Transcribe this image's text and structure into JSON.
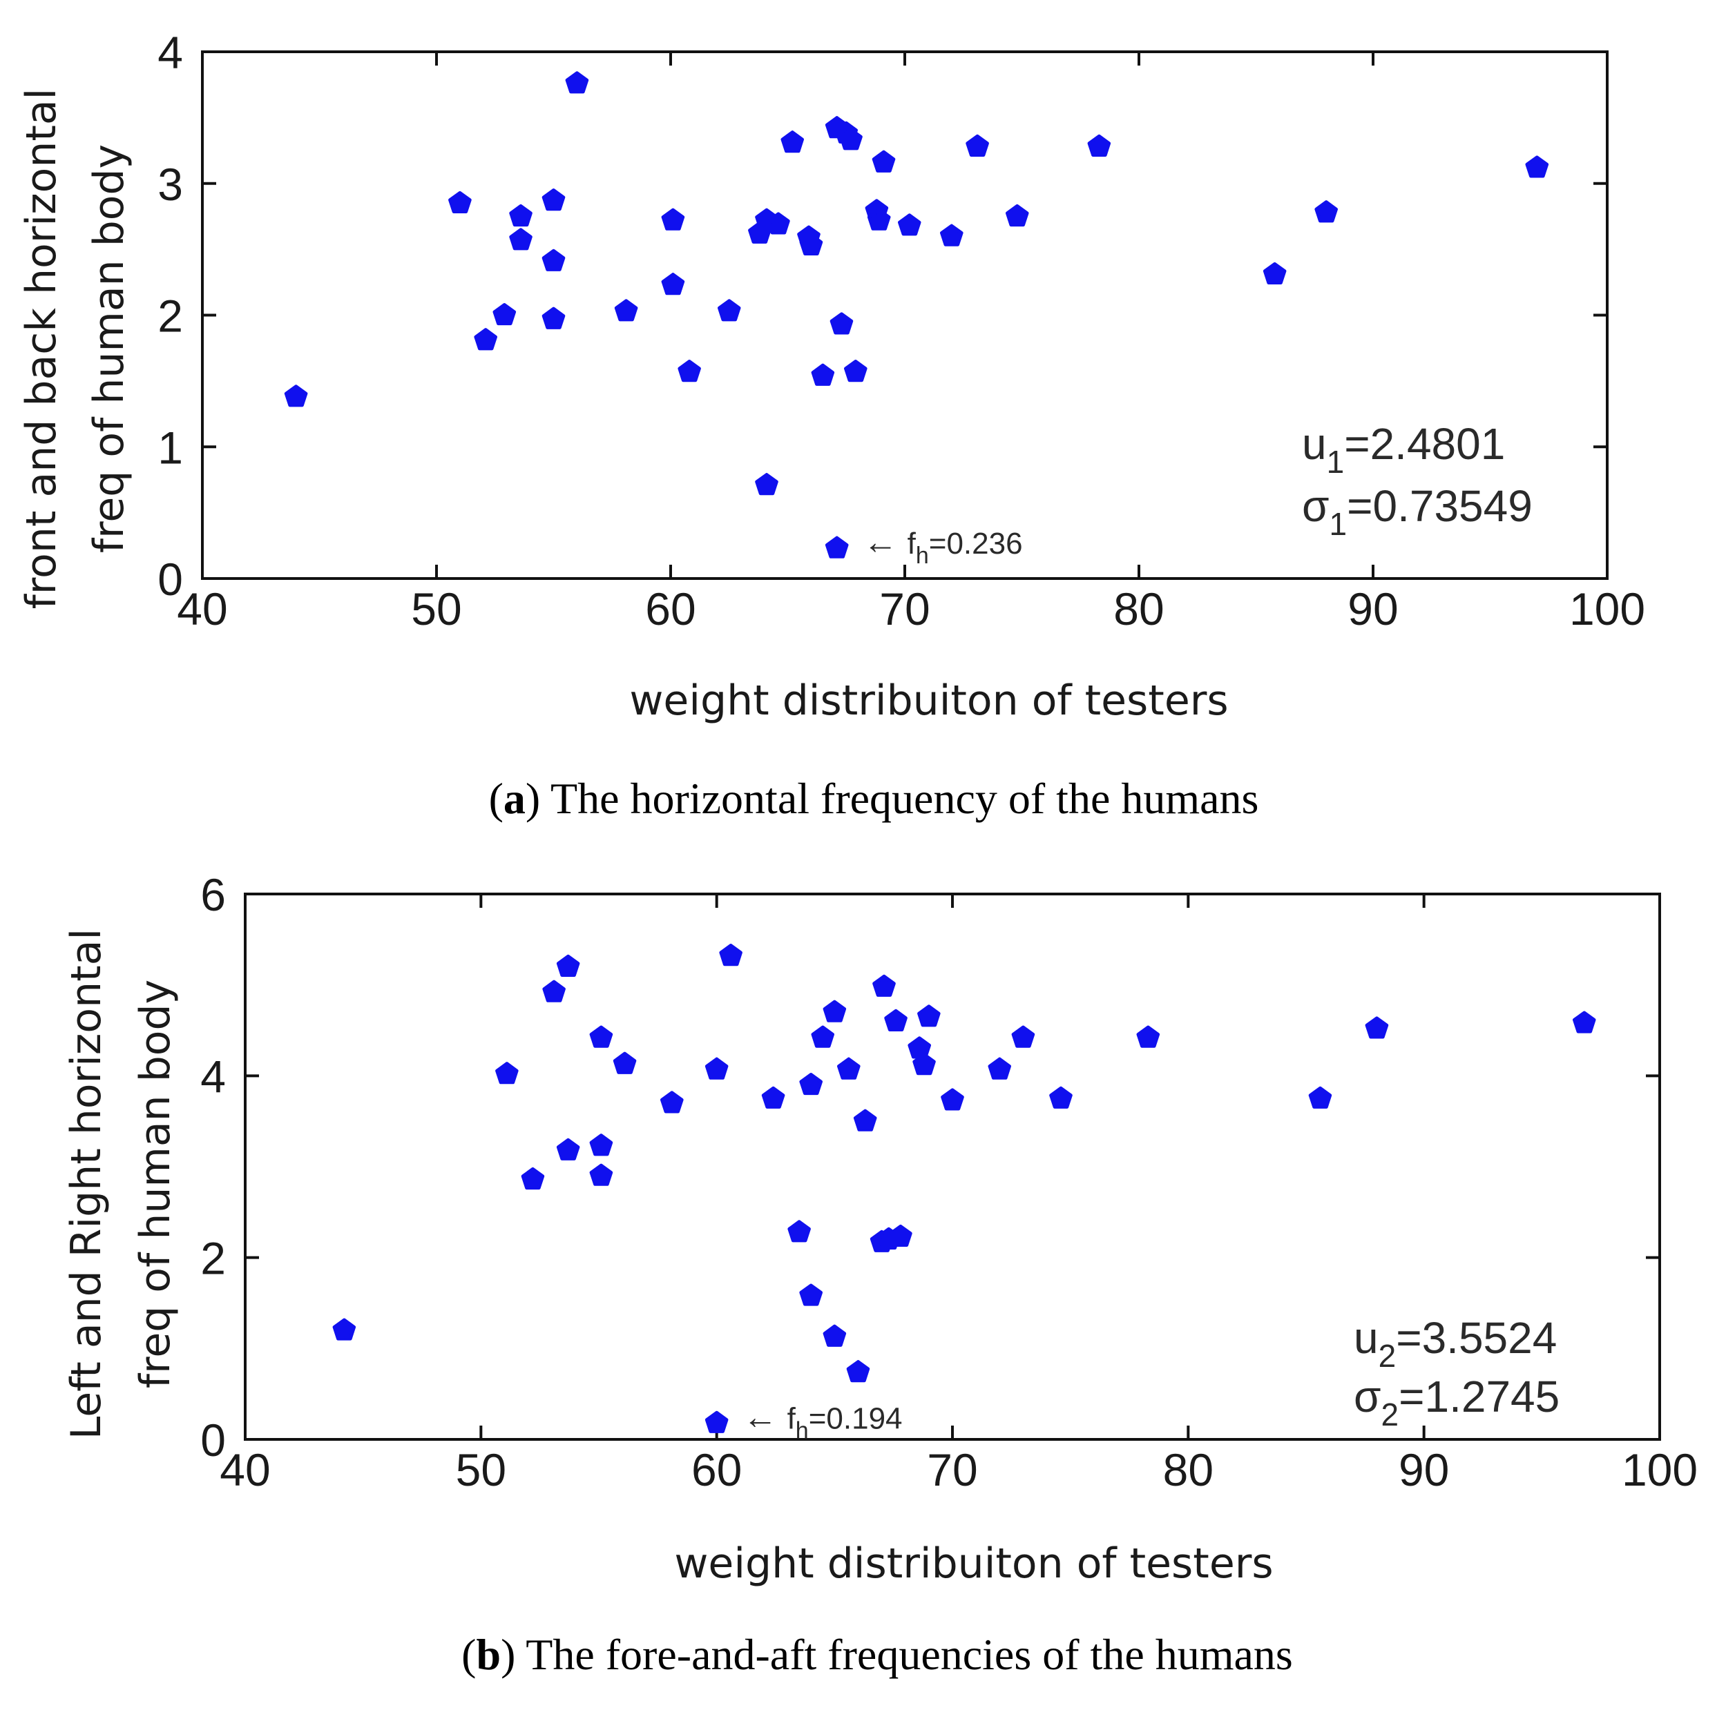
{
  "chart_data": [
    {
      "id": "a",
      "type": "scatter",
      "xlabel": "weight distribuiton of testers",
      "ylabel_line1": "front and back horizontal",
      "ylabel_line2": "freq of human body",
      "xlim": [
        40,
        100
      ],
      "ylim": [
        0,
        4
      ],
      "xticks": [
        40,
        50,
        60,
        70,
        80,
        90,
        100
      ],
      "yticks": [
        0,
        1,
        2,
        3,
        4
      ],
      "marker_color": "#1010ee",
      "points": [
        {
          "x": 44.0,
          "y": 1.38
        },
        {
          "x": 51.0,
          "y": 2.85
        },
        {
          "x": 52.1,
          "y": 1.81
        },
        {
          "x": 52.9,
          "y": 2.0
        },
        {
          "x": 53.6,
          "y": 2.75
        },
        {
          "x": 53.6,
          "y": 2.57
        },
        {
          "x": 55.0,
          "y": 2.87
        },
        {
          "x": 55.0,
          "y": 2.41
        },
        {
          "x": 55.0,
          "y": 1.97
        },
        {
          "x": 56.0,
          "y": 3.76
        },
        {
          "x": 58.1,
          "y": 2.03
        },
        {
          "x": 60.1,
          "y": 2.72
        },
        {
          "x": 60.1,
          "y": 2.23
        },
        {
          "x": 60.8,
          "y": 1.57
        },
        {
          "x": 62.5,
          "y": 2.03
        },
        {
          "x": 63.8,
          "y": 2.62
        },
        {
          "x": 64.1,
          "y": 2.72
        },
        {
          "x": 64.6,
          "y": 2.69
        },
        {
          "x": 64.1,
          "y": 0.71
        },
        {
          "x": 65.2,
          "y": 3.31
        },
        {
          "x": 65.9,
          "y": 2.59
        },
        {
          "x": 66.0,
          "y": 2.53
        },
        {
          "x": 66.5,
          "y": 1.54
        },
        {
          "x": 67.1,
          "y": 3.42
        },
        {
          "x": 67.5,
          "y": 3.38
        },
        {
          "x": 67.7,
          "y": 3.33
        },
        {
          "x": 67.3,
          "y": 1.93
        },
        {
          "x": 67.9,
          "y": 1.57
        },
        {
          "x": 67.1,
          "y": 0.23
        },
        {
          "x": 68.8,
          "y": 2.79
        },
        {
          "x": 68.9,
          "y": 2.72
        },
        {
          "x": 69.1,
          "y": 3.16
        },
        {
          "x": 70.2,
          "y": 2.68
        },
        {
          "x": 72.0,
          "y": 2.6
        },
        {
          "x": 73.1,
          "y": 3.28
        },
        {
          "x": 74.8,
          "y": 2.75
        },
        {
          "x": 78.3,
          "y": 3.28
        },
        {
          "x": 85.8,
          "y": 2.31
        },
        {
          "x": 88.0,
          "y": 2.78
        },
        {
          "x": 97.0,
          "y": 3.12
        }
      ],
      "annotation": {
        "arrow": "←",
        "prefix": "f",
        "sub": "h",
        "value": "=0.236",
        "x": 67.1,
        "y": 0.23
      },
      "stats": [
        {
          "sym": "u",
          "sub": "1",
          "value": "=2.4801"
        },
        {
          "sym": "σ",
          "sub": "1",
          "value": "=0.73549"
        }
      ],
      "caption": {
        "letter": "a",
        "text": " The horizontal frequency of the humans"
      }
    },
    {
      "id": "b",
      "type": "scatter",
      "xlabel": "weight distribuiton of testers",
      "ylabel_line1": "Left and Right  horizontal",
      "ylabel_line2": "freq of human body",
      "xlim": [
        40,
        100
      ],
      "ylim": [
        0,
        6
      ],
      "xticks": [
        40,
        50,
        60,
        70,
        80,
        90,
        100
      ],
      "yticks": [
        0,
        2,
        4,
        6
      ],
      "marker_color": "#1010ee",
      "points": [
        {
          "x": 44.2,
          "y": 1.2
        },
        {
          "x": 51.1,
          "y": 4.02
        },
        {
          "x": 52.2,
          "y": 2.86
        },
        {
          "x": 53.1,
          "y": 4.92
        },
        {
          "x": 53.7,
          "y": 5.2
        },
        {
          "x": 53.7,
          "y": 3.18
        },
        {
          "x": 55.1,
          "y": 4.42
        },
        {
          "x": 55.1,
          "y": 3.23
        },
        {
          "x": 55.1,
          "y": 2.9
        },
        {
          "x": 56.1,
          "y": 4.13
        },
        {
          "x": 58.1,
          "y": 3.7
        },
        {
          "x": 60.0,
          "y": 4.07
        },
        {
          "x": 60.0,
          "y": 0.18
        },
        {
          "x": 60.6,
          "y": 5.32
        },
        {
          "x": 62.4,
          "y": 3.75
        },
        {
          "x": 63.5,
          "y": 2.28
        },
        {
          "x": 64.0,
          "y": 3.9
        },
        {
          "x": 64.0,
          "y": 1.58
        },
        {
          "x": 64.5,
          "y": 4.42
        },
        {
          "x": 65.0,
          "y": 4.7
        },
        {
          "x": 65.0,
          "y": 1.13
        },
        {
          "x": 65.6,
          "y": 4.07
        },
        {
          "x": 66.0,
          "y": 0.74
        },
        {
          "x": 66.3,
          "y": 3.5
        },
        {
          "x": 67.1,
          "y": 4.98
        },
        {
          "x": 67.0,
          "y": 2.17
        },
        {
          "x": 67.3,
          "y": 2.2
        },
        {
          "x": 67.8,
          "y": 2.23
        },
        {
          "x": 67.6,
          "y": 4.6
        },
        {
          "x": 68.6,
          "y": 4.3
        },
        {
          "x": 68.8,
          "y": 4.12
        },
        {
          "x": 69.0,
          "y": 4.65
        },
        {
          "x": 70.0,
          "y": 3.73
        },
        {
          "x": 72.0,
          "y": 4.07
        },
        {
          "x": 73.0,
          "y": 4.42
        },
        {
          "x": 74.6,
          "y": 3.75
        },
        {
          "x": 78.3,
          "y": 4.42
        },
        {
          "x": 85.6,
          "y": 3.75
        },
        {
          "x": 88.0,
          "y": 4.52
        },
        {
          "x": 96.8,
          "y": 4.58
        }
      ],
      "annotation": {
        "arrow": "←",
        "prefix": "f",
        "sub": "h",
        "value": "=0.194",
        "x": 60.0,
        "y": 0.18
      },
      "stats": [
        {
          "sym": "u",
          "sub": "2",
          "value": "=3.5524"
        },
        {
          "sym": "σ",
          "sub": "2",
          "value": "=1.2745"
        }
      ],
      "caption": {
        "letter": "b",
        "text": " The fore-and-aft frequencies of the humans"
      }
    }
  ]
}
